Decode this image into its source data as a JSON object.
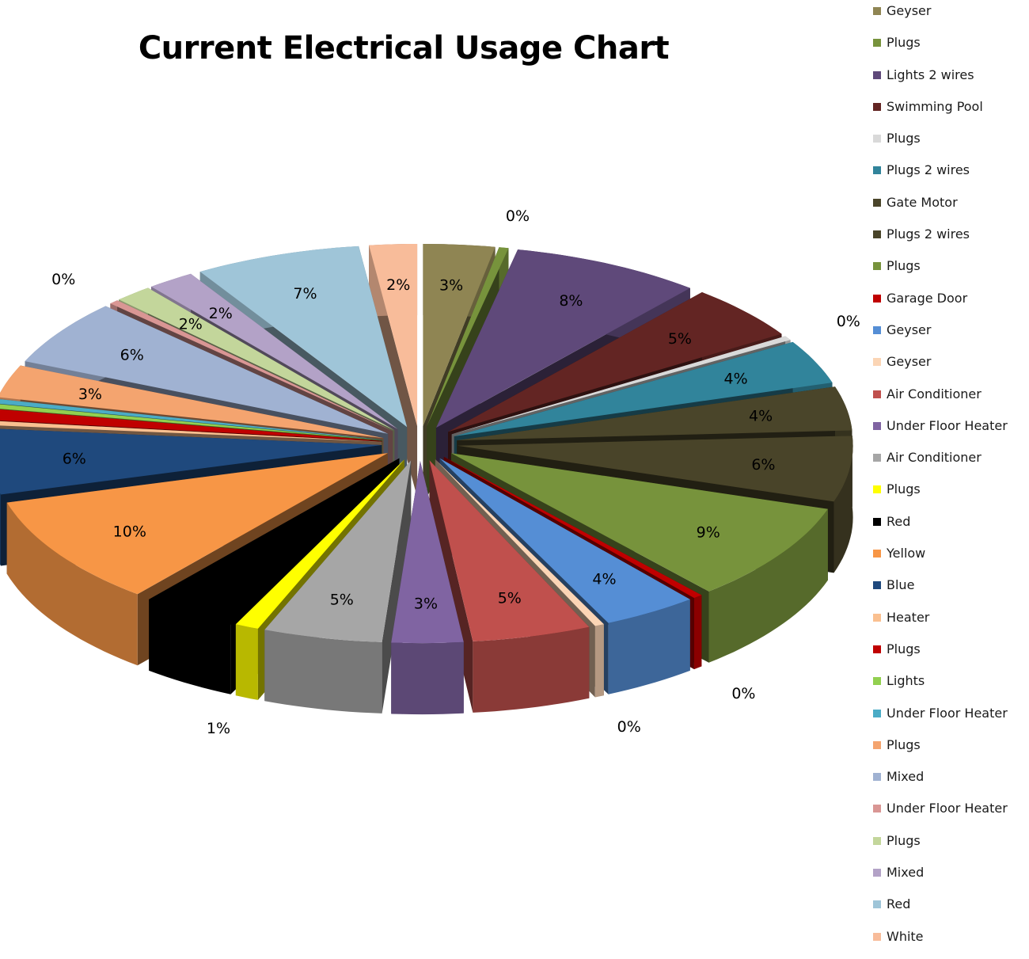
{
  "chart_data": {
    "type": "pie",
    "title": "Current Electrical Usage Chart",
    "legend_position": "right",
    "slices": [
      {
        "name": "Geyser",
        "label": "3%",
        "value": 3,
        "color": "#8f8553"
      },
      {
        "name": "Plugs",
        "label": "0%",
        "value": 0.4,
        "color": "#77933c"
      },
      {
        "name": "Lights 2 wires",
        "label": "8%",
        "value": 8,
        "color": "#5f497a"
      },
      {
        "name": "Swimming Pool",
        "label": "5%",
        "value": 5,
        "color": "#632523"
      },
      {
        "name": "Plugs",
        "label": "0%",
        "value": 0.4,
        "color": "#d9d9d9"
      },
      {
        "name": "Plugs 2 wires",
        "label": "4%",
        "value": 4,
        "color": "#31849b"
      },
      {
        "name": "Gate Motor",
        "label": "4%",
        "value": 4,
        "color": "#4a452a"
      },
      {
        "name": "Plugs 2 wires",
        "label": "6%",
        "value": 6,
        "color": "#494429"
      },
      {
        "name": "Plugs",
        "label": "9%",
        "value": 9,
        "color": "#77933c"
      },
      {
        "name": "Garage Door",
        "label": "0%",
        "value": 0.4,
        "color": "#c00000"
      },
      {
        "name": "Geyser",
        "label": "4%",
        "value": 4,
        "color": "#558ed5"
      },
      {
        "name": "Geyser",
        "label": "0%",
        "value": 0.4,
        "color": "#fbd5b5"
      },
      {
        "name": "Air Conditioner",
        "label": "5%",
        "value": 5,
        "color": "#c0504d"
      },
      {
        "name": "Under Floor Heater",
        "label": "3%",
        "value": 3,
        "color": "#8064a2"
      },
      {
        "name": "Air Conditioner",
        "label": "5%",
        "value": 5,
        "color": "#a6a6a6"
      },
      {
        "name": "Plugs",
        "label": "1%",
        "value": 1,
        "color": "#ffff00"
      },
      {
        "name": "Red",
        "label": "4%",
        "value": 4,
        "color": "#000000"
      },
      {
        "name": "Yellow",
        "label": "10%",
        "value": 10,
        "color": "#f79646"
      },
      {
        "name": "Blue",
        "label": "6%",
        "value": 6,
        "color": "#1f497d"
      },
      {
        "name": "Heater",
        "label": "0%",
        "value": 0.4,
        "color": "#fac090"
      },
      {
        "name": "Plugs",
        "label": "1%",
        "value": 1,
        "color": "#c00000"
      },
      {
        "name": "Lights",
        "label": "0%",
        "value": 0.4,
        "color": "#92d050"
      },
      {
        "name": "Under Floor Heater",
        "label": "0%",
        "value": 0.4,
        "color": "#4bacc6"
      },
      {
        "name": "Plugs",
        "label": "3%",
        "value": 3,
        "color": "#f4a46f"
      },
      {
        "name": "Mixed",
        "label": "6%",
        "value": 6,
        "color": "#a0b2d2"
      },
      {
        "name": "Under Floor Heater",
        "label": "0%",
        "value": 0.4,
        "color": "#d99694"
      },
      {
        "name": "Plugs",
        "label": "2%",
        "value": 1.6,
        "color": "#c3d69b"
      },
      {
        "name": "Mixed",
        "label": "2%",
        "value": 2,
        "color": "#b3a2c7"
      },
      {
        "name": "Red",
        "label": "7%",
        "value": 7,
        "color": "#9fc5d8"
      },
      {
        "name": "White",
        "label": "2%",
        "value": 2,
        "color": "#f8bc9a"
      }
    ]
  }
}
